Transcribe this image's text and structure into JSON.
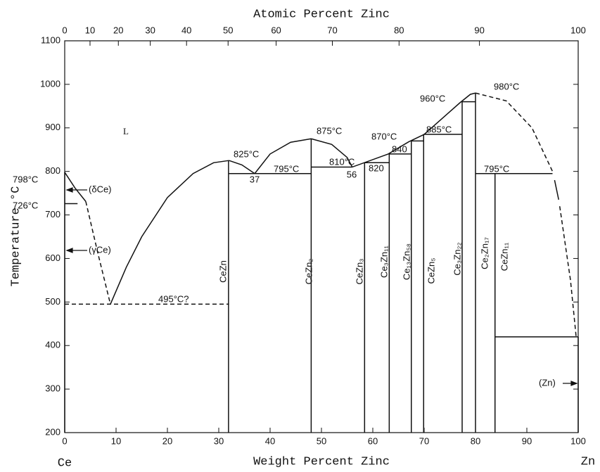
{
  "chart_data": {
    "type": "phase-diagram",
    "title": "Atomic Percent Zinc",
    "xlabel": "Weight Percent Zinc",
    "ylabel": "Temperature °C",
    "left_element": "Ce",
    "right_element": "Zn",
    "xlim": [
      0,
      100
    ],
    "ylim": [
      200,
      1100
    ],
    "xticks": [
      0,
      10,
      20,
      30,
      40,
      50,
      60,
      70,
      80,
      90,
      100
    ],
    "yticks": [
      200,
      300,
      400,
      500,
      600,
      700,
      800,
      900,
      1000,
      1100
    ],
    "x2ticks": [
      0,
      10,
      20,
      30,
      40,
      50,
      60,
      70,
      80,
      90,
      100
    ],
    "lines": [
      {
        "x": [
          0,
          2,
          4.1
        ],
        "y": [
          798,
          762,
          731
        ],
        "dashed": false
      },
      {
        "x": [
          4.1,
          6.5,
          8.9
        ],
        "y": [
          731,
          610,
          495
        ],
        "dashed": true
      },
      {
        "x": [
          8.9,
          12,
          15,
          20,
          25,
          29,
          32
        ],
        "y": [
          495,
          580,
          650,
          740,
          795,
          820,
          825
        ],
        "dashed": false
      },
      {
        "x": [
          32,
          34.5,
          37
        ],
        "y": [
          825,
          815,
          795
        ],
        "dashed": false
      },
      {
        "x": [
          37,
          40,
          44,
          48
        ],
        "y": [
          795,
          840,
          867,
          875
        ],
        "dashed": false
      },
      {
        "x": [
          48,
          52,
          55,
          56
        ],
        "y": [
          875,
          862,
          832,
          810
        ],
        "dashed": false
      },
      {
        "x": [
          56,
          63,
          67,
          70,
          77,
          79,
          80
        ],
        "y": [
          810,
          840,
          868,
          885,
          958,
          977,
          980
        ],
        "dashed": false
      },
      {
        "x": [
          80,
          86,
          91,
          95
        ],
        "y": [
          980,
          962,
          900,
          800
        ],
        "dashed": true
      },
      {
        "x": [
          95.4,
          96.2
        ],
        "y": [
          780,
          735
        ],
        "dashed": false
      },
      {
        "x": [
          96.4,
          98.5,
          99.6
        ],
        "y": [
          720,
          550,
          420
        ],
        "dashed": true
      },
      {
        "x": [
          0,
          2.5
        ],
        "y": [
          726,
          726
        ],
        "dashed": false
      },
      {
        "x": [
          0,
          32
        ],
        "y": [
          495,
          495
        ],
        "dashed": true
      },
      {
        "x": [
          32,
          48
        ],
        "y": [
          795,
          795
        ],
        "dashed": false
      },
      {
        "x": [
          48,
          56
        ],
        "y": [
          810,
          810
        ],
        "dashed": false
      },
      {
        "x": [
          58.4,
          63.2
        ],
        "y": [
          820,
          820
        ],
        "dashed": false
      },
      {
        "x": [
          63.2,
          67.5
        ],
        "y": [
          840,
          840
        ],
        "dashed": false
      },
      {
        "x": [
          67.5,
          69.9
        ],
        "y": [
          870,
          870
        ],
        "dashed": false
      },
      {
        "x": [
          69.9,
          77.4
        ],
        "y": [
          885,
          885
        ],
        "dashed": false
      },
      {
        "x": [
          77.4,
          80
        ],
        "y": [
          960,
          960
        ],
        "dashed": false
      },
      {
        "x": [
          80,
          95
        ],
        "y": [
          795,
          795
        ],
        "dashed": false
      },
      {
        "x": [
          83.8,
          100
        ],
        "y": [
          420,
          420
        ],
        "dashed": false
      },
      {
        "x": [
          31.9,
          31.9
        ],
        "y": [
          200,
          825
        ],
        "dashed": false
      },
      {
        "x": [
          48,
          48
        ],
        "y": [
          200,
          875
        ],
        "dashed": false
      },
      {
        "x": [
          58.4,
          58.4
        ],
        "y": [
          200,
          820
        ],
        "dashed": false
      },
      {
        "x": [
          63.2,
          63.2
        ],
        "y": [
          200,
          840
        ],
        "dashed": false
      },
      {
        "x": [
          67.5,
          67.5
        ],
        "y": [
          200,
          870
        ],
        "dashed": false
      },
      {
        "x": [
          69.9,
          69.9
        ],
        "y": [
          200,
          885
        ],
        "dashed": false
      },
      {
        "x": [
          77.4,
          77.4
        ],
        "y": [
          200,
          960
        ],
        "dashed": false
      },
      {
        "x": [
          80,
          80
        ],
        "y": [
          200,
          980
        ],
        "dashed": false
      },
      {
        "x": [
          83.8,
          83.8
        ],
        "y": [
          200,
          795
        ],
        "dashed": false
      },
      {
        "x": [
          0,
          0
        ],
        "y": [
          200,
          798
        ],
        "dashed": false
      },
      {
        "x": [
          100,
          100
        ],
        "y": [
          200,
          420
        ],
        "dashed": false
      }
    ],
    "annotations": [
      "L",
      "825°C",
      "37",
      "795°C",
      "875°C",
      "810°C",
      "56",
      "820",
      "840",
      "870°C",
      "885°C",
      "960°C",
      "980°C",
      "795°C",
      "495°C?",
      "798°C",
      "726°C",
      "(δCe)",
      "(γCe)",
      "(Zn)"
    ],
    "phases": [
      "CeZn",
      "CeZn₂",
      "CeZn₃",
      "Ce₃Zn₁₁",
      "Ce₁₃Zn₅₈",
      "CeZn₅",
      "Ce₃Zn₂₂",
      "Ce₂Zn₁₇",
      "CeZn₁₁"
    ]
  }
}
